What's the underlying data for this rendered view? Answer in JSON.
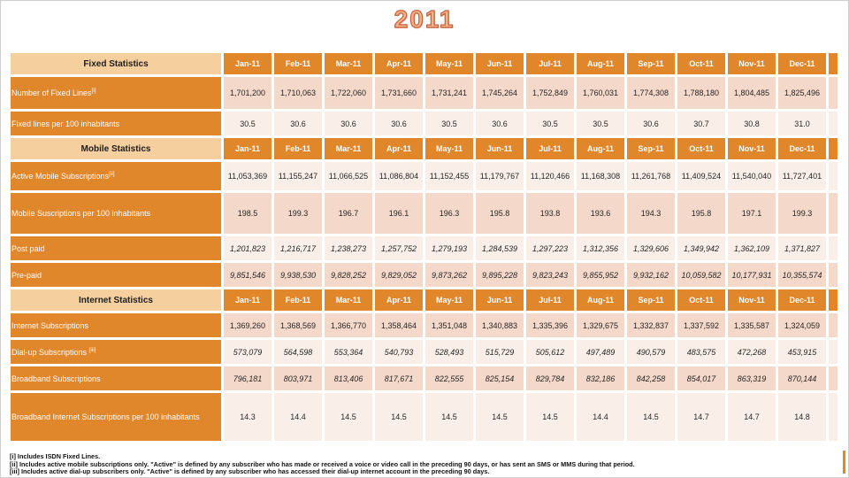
{
  "title": "2011",
  "months": [
    "Jan-11",
    "Feb-11",
    "Mar-11",
    "Apr-11",
    "May-11",
    "Jun-11",
    "Jul-11",
    "Aug-11",
    "Sep-11",
    "Oct-11",
    "Nov-11",
    "Dec-11"
  ],
  "sections": [
    {
      "header": "Fixed Statistics",
      "rows": [
        {
          "label": "Number of Fixed Lines",
          "sup": "[i]",
          "shade": "pink",
          "italic": false,
          "values": [
            "1,701,200",
            "1,710,063",
            "1,722,060",
            "1,731,660",
            "1,731,241",
            "1,745,264",
            "1,752,849",
            "1,760,031",
            "1,774,308",
            "1,788,180",
            "1,804,485",
            "1,825,496"
          ]
        },
        {
          "label": "Fixed lines per 100 inhabitants",
          "sup": "",
          "shade": "light",
          "italic": false,
          "values": [
            "30.5",
            "30.6",
            "30.6",
            "30.6",
            "30.5",
            "30.6",
            "30.5",
            "30.5",
            "30.6",
            "30.7",
            "30.8",
            "31.0"
          ]
        }
      ]
    },
    {
      "header": "Mobile Statistics",
      "rows": [
        {
          "label": "Active Mobile Subscriptions",
          "sup": "[ii]",
          "shade": "light",
          "italic": false,
          "values": [
            "11,053,369",
            "11,155,247",
            "11,066,525",
            "11,086,804",
            "11,152,455",
            "11,179,767",
            "11,120,466",
            "11,168,308",
            "11,261,768",
            "11,409,524",
            "11,540,040",
            "11,727,401"
          ]
        },
        {
          "label": "Mobile Suscriptions per 100 inhabitants",
          "sup": "",
          "shade": "pink",
          "italic": false,
          "values": [
            "198.5",
            "199.3",
            "196.7",
            "196.1",
            "196.3",
            "195.8",
            "193.8",
            "193.6",
            "194.3",
            "195.8",
            "197.1",
            "199.3"
          ]
        },
        {
          "label": "Post paid",
          "sup": "",
          "shade": "light",
          "italic": true,
          "values": [
            "1,201,823",
            "1,216,717",
            "1,238,273",
            "1,257,752",
            "1,279,193",
            "1,284,539",
            "1,297,223",
            "1,312,356",
            "1,329,606",
            "1,349,942",
            "1,362,109",
            "1,371,827"
          ]
        },
        {
          "label": "Pre-paid",
          "sup": "",
          "shade": "pink",
          "italic": true,
          "values": [
            "9,851,546",
            "9,938,530",
            "9,828,252",
            "9,829,052",
            "9,873,262",
            "9,895,228",
            "9,823,243",
            "9,855,952",
            "9,932,162",
            "10,059,582",
            "10,177,931",
            "10,355,574"
          ]
        }
      ]
    },
    {
      "header": "Internet Statistics",
      "rows": [
        {
          "label": "Internet Subscriptions",
          "sup": "",
          "shade": "pink",
          "italic": false,
          "values": [
            "1,369,260",
            "1,368,569",
            "1,366,770",
            "1,358,464",
            "1,351,048",
            "1,340,883",
            "1,335,396",
            "1,329,675",
            "1,332,837",
            "1,337,592",
            "1,335,587",
            "1,324,059"
          ]
        },
        {
          "label": "Dial-up Subscriptions ",
          "sup": "[iii]",
          "shade": "light",
          "italic": true,
          "values": [
            "573,079",
            "564,598",
            "553,364",
            "540,793",
            "528,493",
            "515,729",
            "505,612",
            "497,489",
            "490,579",
            "483,575",
            "472,268",
            "453,915"
          ]
        },
        {
          "label": "Broadband Subscriptions",
          "sup": "",
          "shade": "pink",
          "italic": true,
          "values": [
            "796,181",
            "803,971",
            "813,406",
            "817,671",
            "822,555",
            "825,154",
            "829,784",
            "832,186",
            "842,258",
            "854,017",
            "863,319",
            "870,144"
          ]
        },
        {
          "label": "Broadband Internet Subscriptions per 100 inhabitants",
          "sup": "",
          "shade": "light",
          "italic": false,
          "values": [
            "14.3",
            "14.4",
            "14.5",
            "14.5",
            "14.5",
            "14.5",
            "14.5",
            "14.4",
            "14.5",
            "14.7",
            "14.7",
            "14.8"
          ]
        }
      ]
    }
  ],
  "footnotes": [
    "[i] Includes ISDN Fixed Lines.",
    "[ii] Includes active mobile subscriptions only.  \"Active\" is defined by any subscriber who has made or received a voice or video call in the preceding 90 days, or has sent an SMS or MMS during that period.",
    "[iii] Includes active dial-up subscribers only.  \"Active\" is defined by any subscriber who has accessed their dial-up internet account in the preceding 90 days."
  ],
  "colors": {
    "accent": "#E0872B",
    "header_label_bg": "#F6CF9E",
    "row_pink": "#F4D8C9",
    "row_light": "#FAEFE8",
    "title_fill": "#F2B28C",
    "title_outline": "#C75F38"
  }
}
